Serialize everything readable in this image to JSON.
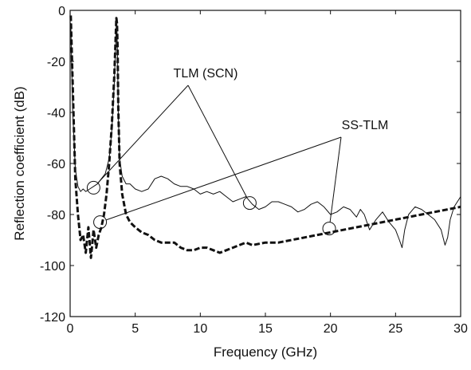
{
  "chart_data": {
    "type": "line",
    "title": "",
    "xlabel": "Frequency (GHz)",
    "ylabel": "Reflection coefficient (dB)",
    "xlim": [
      0,
      30
    ],
    "ylim": [
      -120,
      0
    ],
    "xticks": [
      0,
      5,
      10,
      15,
      20,
      25,
      30
    ],
    "yticks": [
      0,
      -20,
      -40,
      -60,
      -80,
      -100,
      -120
    ],
    "grid": false,
    "legend": "none",
    "series": [
      {
        "name": "TLM (SCN)",
        "style": "thin-solid",
        "color": "#111111",
        "x": [
          0.05,
          0.2,
          0.4,
          0.6,
          0.8,
          1.0,
          1.2,
          1.5,
          1.8,
          2.1,
          2.4,
          2.7,
          3.0,
          3.2,
          3.4,
          3.5,
          3.55,
          3.6,
          3.65,
          3.7,
          3.8,
          4.0,
          4.3,
          4.6,
          5.0,
          5.5,
          6.0,
          6.5,
          7.0,
          7.5,
          8.0,
          8.5,
          9.0,
          9.5,
          10.0,
          10.5,
          11.0,
          11.5,
          12.0,
          12.5,
          13.0,
          13.5,
          14.0,
          14.5,
          15.0,
          15.5,
          16.0,
          16.5,
          17.0,
          17.5,
          18.0,
          18.5,
          19.0,
          19.5,
          20.0,
          20.5,
          21.0,
          21.5,
          22.0,
          22.3,
          22.6,
          23.0,
          23.5,
          24.0,
          24.5,
          25.0,
          25.3,
          25.5,
          25.7,
          26.0,
          26.5,
          27.0,
          27.5,
          28.0,
          28.5,
          28.8,
          29.0,
          29.2,
          29.5,
          30.0
        ],
        "y": [
          -5,
          -40,
          -62,
          -69,
          -71,
          -70,
          -71,
          -70,
          -69,
          -68,
          -66,
          -64,
          -58,
          -47,
          -28,
          -12,
          -5,
          -8,
          -20,
          -40,
          -58,
          -65,
          -68,
          -68,
          -70,
          -71,
          -70,
          -66,
          -65,
          -66,
          -68,
          -69,
          -69,
          -70,
          -72,
          -71,
          -72,
          -71,
          -73,
          -75,
          -74,
          -73,
          -76,
          -78,
          -77,
          -75,
          -75,
          -76,
          -77,
          -79,
          -78,
          -76,
          -75,
          -77,
          -80,
          -79,
          -77,
          -78,
          -81,
          -78,
          -80,
          -86,
          -82,
          -79,
          -83,
          -86,
          -90,
          -93,
          -86,
          -80,
          -77,
          -78,
          -80,
          -82,
          -86,
          -92,
          -89,
          -82,
          -77,
          -73
        ]
      },
      {
        "name": "SS-TLM",
        "style": "thick-dashed",
        "color": "#111111",
        "x": [
          0.05,
          0.2,
          0.4,
          0.6,
          0.8,
          1.0,
          1.2,
          1.4,
          1.6,
          1.8,
          2.0,
          2.2,
          2.4,
          2.6,
          2.8,
          3.0,
          3.2,
          3.4,
          3.5,
          3.55,
          3.6,
          3.65,
          3.7,
          3.8,
          4.0,
          4.3,
          4.6,
          5.0,
          5.5,
          6.0,
          6.5,
          7.0,
          7.5,
          8.0,
          8.5,
          9.0,
          9.5,
          10.0,
          10.5,
          11.0,
          11.5,
          12.0,
          12.5,
          13.0,
          13.5,
          14.0,
          15.0,
          16.0,
          17.0,
          18.0,
          19.0,
          20.0,
          21.0,
          22.0,
          23.0,
          24.0,
          25.0,
          26.0,
          27.0,
          28.0,
          29.0,
          30.0
        ],
        "y": [
          -2,
          -30,
          -66,
          -80,
          -90,
          -88,
          -95,
          -85,
          -97,
          -86,
          -93,
          -88,
          -85,
          -80,
          -72,
          -60,
          -45,
          -25,
          -10,
          -3,
          -5,
          -15,
          -38,
          -60,
          -72,
          -80,
          -83,
          -85,
          -87,
          -88,
          -90,
          -91,
          -91,
          -91,
          -93,
          -94,
          -94,
          -93,
          -93,
          -94,
          -95,
          -94,
          -93,
          -92,
          -91,
          -92,
          -91,
          -91,
          -90,
          -89,
          -88,
          -87,
          -86,
          -85,
          -84,
          -83,
          -82,
          -81,
          -80,
          -79,
          -78,
          -77
        ]
      }
    ],
    "annotations": [
      {
        "label": "TLM (SCN)",
        "circles": [
          [
            1.8,
            -69.5
          ],
          [
            13.8,
            -75.5
          ]
        ]
      },
      {
        "label": "SS-TLM",
        "circles": [
          [
            2.3,
            -83
          ],
          [
            19.9,
            -85.5
          ]
        ]
      }
    ]
  }
}
